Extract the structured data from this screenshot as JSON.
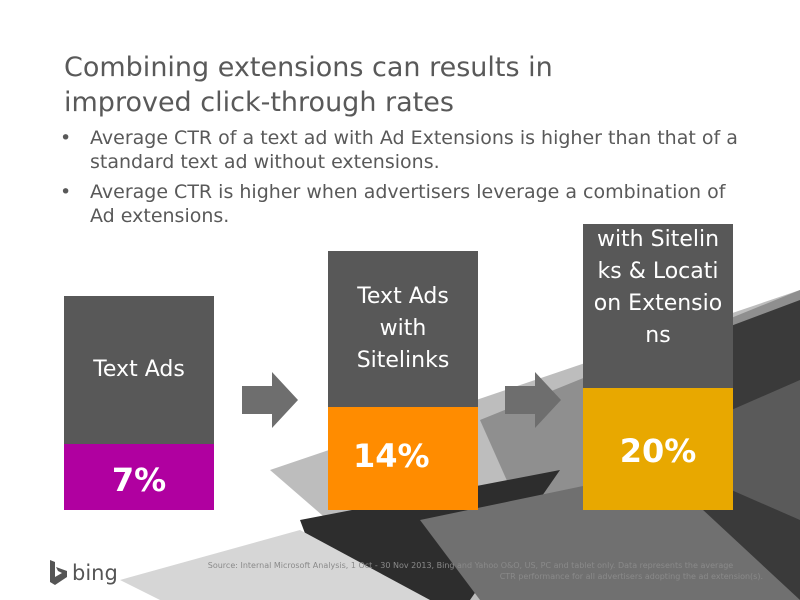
{
  "slide": {
    "title_line1": "Combining extensions can results in",
    "title_line2": "improved click-through rates",
    "bullets": [
      "Average CTR of a text ad with Ad Extensions is higher than that of a standard text ad without extensions.",
      "Average CTR is higher when advertisers leverage a combination of Ad extensions."
    ],
    "bullet_glyph": "•"
  },
  "columns": [
    {
      "label": "Text Ads",
      "value": "7%",
      "value_color": "#b000a0"
    },
    {
      "label": "Text Ads with Sitelinks",
      "value": "14%",
      "value_color": "#ff8c00"
    },
    {
      "label": "with Sitelinks & Location Extensions",
      "value": "20%",
      "value_color": "#e8a800"
    }
  ],
  "colors": {
    "label_bg": "#585858",
    "arrow": "#6e6e6e",
    "text": "#595959"
  },
  "footer": {
    "logo_text": "bing",
    "logo_icon": "bing-b-icon",
    "source_line1": "Source: Internal Microsoft Analysis, 1 Oct - 30 Nov 2013, Bing and Yahoo O&O, US, PC and tablet only. Data represents the average",
    "source_line2": "CTR performance for all advertisers adopting the ad extension(s)."
  }
}
